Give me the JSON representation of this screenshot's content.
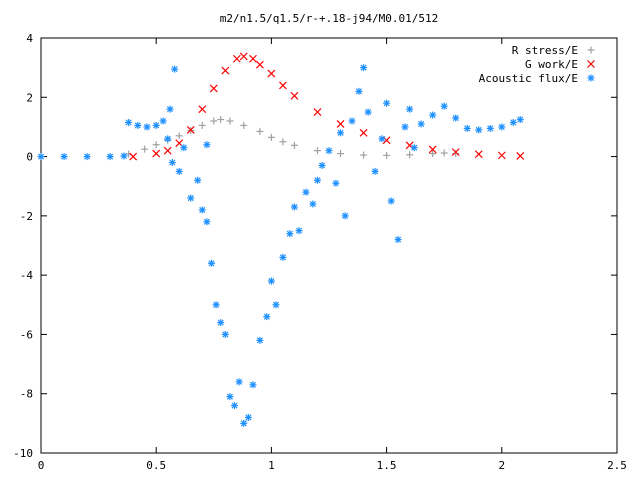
{
  "chart_data": {
    "type": "scatter",
    "title": "m2/n1.5/q1.5/r-+.18-j94/M0.01/512",
    "xlabel": "",
    "ylabel": "",
    "xlim": [
      0,
      2.5
    ],
    "ylim": [
      -10,
      4
    ],
    "x_ticks": [
      "0",
      "0.5",
      "1",
      "1.5",
      "2",
      "2.5"
    ],
    "y_ticks": [
      "-10",
      "-8",
      "-6",
      "-4",
      "-2",
      "0",
      "2",
      "4"
    ],
    "grid": false,
    "legend_position": "top-right",
    "series": [
      {
        "name": "R stress/E",
        "marker": "plus",
        "color": "#a0a0a0",
        "points": [
          [
            0.38,
            0.08
          ],
          [
            0.45,
            0.25
          ],
          [
            0.5,
            0.4
          ],
          [
            0.55,
            0.55
          ],
          [
            0.6,
            0.7
          ],
          [
            0.65,
            0.88
          ],
          [
            0.7,
            1.05
          ],
          [
            0.75,
            1.2
          ],
          [
            0.78,
            1.25
          ],
          [
            0.82,
            1.2
          ],
          [
            0.88,
            1.05
          ],
          [
            0.95,
            0.85
          ],
          [
            1.0,
            0.65
          ],
          [
            1.05,
            0.5
          ],
          [
            1.1,
            0.38
          ],
          [
            1.2,
            0.2
          ],
          [
            1.3,
            0.1
          ],
          [
            1.4,
            0.05
          ],
          [
            1.5,
            0.04
          ],
          [
            1.6,
            0.06
          ],
          [
            1.7,
            0.1
          ],
          [
            1.75,
            0.12
          ],
          [
            1.8,
            0.1
          ]
        ]
      },
      {
        "name": "G work/E",
        "marker": "cross",
        "color": "#ff0000",
        "points": [
          [
            0.4,
            0.0
          ],
          [
            0.5,
            0.1
          ],
          [
            0.55,
            0.2
          ],
          [
            0.6,
            0.45
          ],
          [
            0.65,
            0.9
          ],
          [
            0.7,
            1.6
          ],
          [
            0.75,
            2.3
          ],
          [
            0.8,
            2.9
          ],
          [
            0.85,
            3.3
          ],
          [
            0.88,
            3.38
          ],
          [
            0.92,
            3.3
          ],
          [
            0.95,
            3.1
          ],
          [
            1.0,
            2.8
          ],
          [
            1.05,
            2.4
          ],
          [
            1.1,
            2.05
          ],
          [
            1.2,
            1.5
          ],
          [
            1.3,
            1.1
          ],
          [
            1.4,
            0.8
          ],
          [
            1.5,
            0.55
          ],
          [
            1.6,
            0.38
          ],
          [
            1.7,
            0.24
          ],
          [
            1.8,
            0.15
          ],
          [
            1.9,
            0.08
          ],
          [
            2.0,
            0.04
          ],
          [
            2.08,
            0.02
          ]
        ]
      },
      {
        "name": "Acoustic flux/E",
        "marker": "star",
        "color": "#1e90ff",
        "points": [
          [
            0.0,
            0.0
          ],
          [
            0.1,
            0.0
          ],
          [
            0.2,
            0.0
          ],
          [
            0.3,
            0.0
          ],
          [
            0.36,
            0.02
          ],
          [
            0.38,
            1.15
          ],
          [
            0.42,
            1.05
          ],
          [
            0.46,
            1.0
          ],
          [
            0.5,
            1.05
          ],
          [
            0.53,
            1.2
          ],
          [
            0.56,
            1.6
          ],
          [
            0.58,
            2.95
          ],
          [
            0.55,
            0.6
          ],
          [
            0.57,
            -0.2
          ],
          [
            0.6,
            -0.5
          ],
          [
            0.62,
            0.3
          ],
          [
            0.65,
            -1.4
          ],
          [
            0.68,
            -0.8
          ],
          [
            0.7,
            -1.8
          ],
          [
            0.72,
            0.4
          ],
          [
            0.72,
            -2.2
          ],
          [
            0.74,
            -3.6
          ],
          [
            0.76,
            -5.0
          ],
          [
            0.78,
            -5.6
          ],
          [
            0.8,
            -6.0
          ],
          [
            0.82,
            -8.1
          ],
          [
            0.84,
            -8.4
          ],
          [
            0.86,
            -7.6
          ],
          [
            0.88,
            -9.0
          ],
          [
            0.9,
            -8.8
          ],
          [
            0.92,
            -7.7
          ],
          [
            0.95,
            -6.2
          ],
          [
            0.98,
            -5.4
          ],
          [
            1.0,
            -4.2
          ],
          [
            1.02,
            -5.0
          ],
          [
            1.05,
            -3.4
          ],
          [
            1.08,
            -2.6
          ],
          [
            1.1,
            -1.7
          ],
          [
            1.12,
            -2.5
          ],
          [
            1.15,
            -1.2
          ],
          [
            1.18,
            -1.6
          ],
          [
            1.2,
            -0.8
          ],
          [
            1.22,
            -0.3
          ],
          [
            1.25,
            0.2
          ],
          [
            1.28,
            -0.9
          ],
          [
            1.3,
            0.8
          ],
          [
            1.32,
            -2.0
          ],
          [
            1.35,
            1.2
          ],
          [
            1.38,
            2.2
          ],
          [
            1.4,
            3.0
          ],
          [
            1.42,
            1.5
          ],
          [
            1.45,
            -0.5
          ],
          [
            1.48,
            0.6
          ],
          [
            1.5,
            1.8
          ],
          [
            1.52,
            -1.5
          ],
          [
            1.55,
            -2.8
          ],
          [
            1.58,
            1.0
          ],
          [
            1.6,
            1.6
          ],
          [
            1.62,
            0.3
          ],
          [
            1.65,
            1.1
          ],
          [
            1.7,
            1.4
          ],
          [
            1.75,
            1.7
          ],
          [
            1.8,
            1.3
          ],
          [
            1.85,
            0.95
          ],
          [
            1.9,
            0.9
          ],
          [
            1.95,
            0.95
          ],
          [
            2.0,
            1.0
          ],
          [
            2.05,
            1.15
          ],
          [
            2.08,
            1.25
          ]
        ]
      }
    ]
  }
}
